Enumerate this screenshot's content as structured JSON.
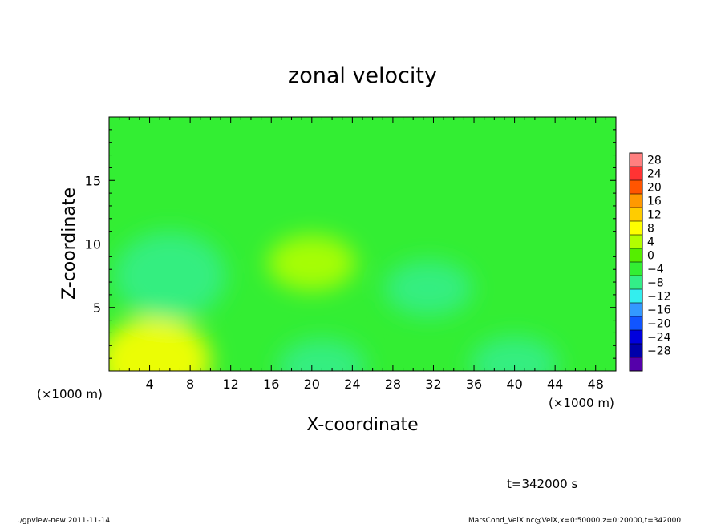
{
  "chart_data": {
    "type": "heatmap",
    "title": "zonal velocity",
    "xlabel": "X-coordinate",
    "ylabel": "Z-coordinate",
    "x_unit_left": "(×1000 m)",
    "x_unit_right": "(×1000 m)",
    "xlim": [
      0,
      50
    ],
    "ylim": [
      0,
      20
    ],
    "xticks": [
      4,
      8,
      12,
      16,
      20,
      24,
      28,
      32,
      36,
      40,
      44,
      48
    ],
    "yticks": [
      5,
      10,
      15
    ],
    "colorbar": {
      "levels": [
        28,
        24,
        20,
        16,
        12,
        8,
        4,
        0,
        -4,
        -8,
        -12,
        -16,
        -20,
        -24,
        -28
      ],
      "colors": [
        "#ff7f7f",
        "#ff3333",
        "#ff5500",
        "#ff9900",
        "#ffcc00",
        "#ffff00",
        "#b3ff00",
        "#55ee00",
        "#33ee33",
        "#33ee88",
        "#33eeee",
        "#3399ff",
        "#1155ff",
        "#0000dd",
        "#0000aa",
        "#5500aa"
      ]
    },
    "time_label": "t=342000 s",
    "field_features": [
      {
        "x": 4.5,
        "z": 0.8,
        "value": 9,
        "note": "yellow"
      },
      {
        "x": 6.0,
        "z": 7.5,
        "value": -8,
        "note": "cyan"
      },
      {
        "x": 20.0,
        "z": 8.5,
        "value": 5,
        "note": "yellow-green"
      },
      {
        "x": 21.0,
        "z": 0.3,
        "value": -6,
        "note": "cyan-green"
      },
      {
        "x": 31.5,
        "z": 6.5,
        "value": -5,
        "note": "cyan-green"
      },
      {
        "x": 40.0,
        "z": 0.5,
        "value": -5,
        "note": "cyan-green"
      }
    ]
  },
  "footer": {
    "left": "./gpview-new  2011-11-14",
    "right": "MarsCond_VelX.nc@VelX,x=0:50000,z=0:20000,t=342000"
  },
  "colors": {
    "background_field": "#33ee33"
  }
}
